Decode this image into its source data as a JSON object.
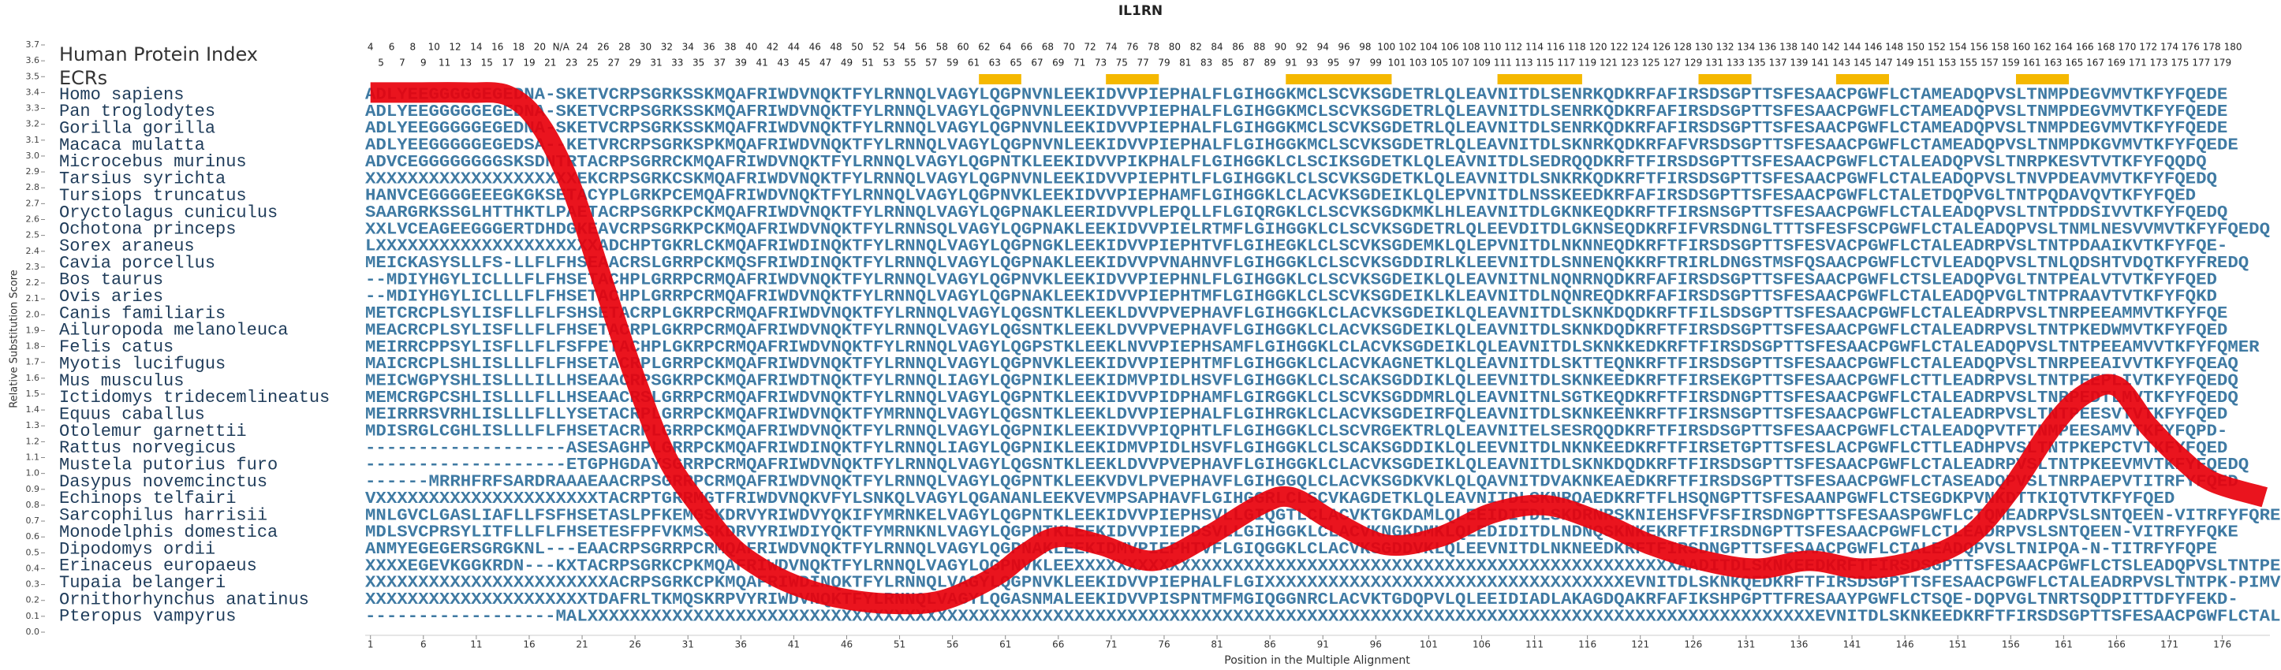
{
  "title": "IL1RN",
  "header": {
    "protein_index_label": "Human Protein Index",
    "ecr_label": "ECRs",
    "index_row_1": [
      4,
      6,
      8,
      10,
      12,
      14,
      16,
      18,
      20,
      "N/A",
      24,
      26,
      28,
      30,
      32,
      34,
      36,
      38,
      40,
      42,
      44,
      46,
      48,
      50,
      52,
      54,
      56,
      58,
      60,
      62,
      64,
      66,
      68,
      70,
      72,
      74,
      76,
      78,
      80,
      82,
      84,
      86,
      88,
      90,
      92,
      94,
      96,
      98,
      100,
      102,
      104,
      106,
      108,
      110,
      112,
      114,
      116,
      118,
      120,
      122,
      124,
      126,
      128,
      130,
      132,
      134,
      136,
      138,
      140,
      142,
      144,
      146,
      148,
      150,
      152,
      154,
      156,
      158,
      160,
      162,
      164,
      166,
      168,
      170,
      172,
      174,
      176,
      178,
      180
    ],
    "index_row_2": [
      5,
      7,
      9,
      11,
      13,
      15,
      17,
      19,
      21,
      23,
      25,
      27,
      29,
      31,
      33,
      35,
      37,
      39,
      41,
      43,
      45,
      47,
      49,
      51,
      53,
      55,
      57,
      59,
      61,
      63,
      65,
      67,
      69,
      71,
      73,
      75,
      77,
      79,
      81,
      83,
      85,
      87,
      89,
      91,
      93,
      95,
      97,
      99,
      101,
      103,
      105,
      107,
      109,
      111,
      113,
      115,
      117,
      119,
      121,
      123,
      125,
      127,
      129,
      131,
      133,
      135,
      137,
      139,
      141,
      143,
      145,
      147,
      149,
      151,
      153,
      155,
      157,
      159,
      161,
      163,
      165,
      167,
      169,
      171,
      173,
      175,
      177,
      179
    ]
  },
  "ecr_regions": [
    {
      "start": 59,
      "end": 62
    },
    {
      "start": 71,
      "end": 75
    },
    {
      "start": 88,
      "end": 97
    },
    {
      "start": 108,
      "end": 115
    },
    {
      "start": 127,
      "end": 131
    },
    {
      "start": 140,
      "end": 144
    },
    {
      "start": 157,
      "end": 161
    }
  ],
  "alignment": {
    "rows": [
      {
        "species": "Homo sapiens",
        "sequence": "ADLYEEGGGGGEGEDNA-SKETVCRPSGRKSSKMQAFRIWDVNQKTFYLRNNQLVAGYLQGPNVNLEEKIDVVPIEPHALFLGIHGGKMCLSCVKSGDETRLQLEAVNITDLSENRKQDKRFAFIRSDSGPTTSFESAACPGWFLCTAMEADQPVSLTNMPDEGVMVTKFYFQEDE"
      },
      {
        "species": "Pan troglodytes",
        "sequence": "ADLYEEGGGGGEGEDNA-SKETVCRPSGRKSSKMQAFRIWDVNQKTFYLRNNQLVAGYLQGPNVNLEEKIDVVPIEPHALFLGIHGGKMCLSCVKSGDETRLQLEAVNITDLSENRKQDKRFAFIRSDSGPTTSFESAACPGWFLCTAMEADQPVSLTNMPDEGVMVTKFYFQEDE"
      },
      {
        "species": "Gorilla gorilla",
        "sequence": "ADLYEEGGGGGEGEDNA-SKETVCRPSGRKSSKMQAFRIWDVNQKTFYLRNNQLVAGYLQGPNVNLEEKIDVVPIEPHALFLGIHGGKMCLSCVKSGDETRLQLEAVNITDLSENRKQDKRFAFIRSDSGPTTSFESAACPGWFLCTAMEADQPVSLTNMPDEGVMVTKFYFQEDE"
      },
      {
        "species": "Macaca mulatta",
        "sequence": "ADLYEEGGGGGEGEDSA--KETVRCRPSGRKSPKMQAFRIWDVNQKTFYLRNNQLVAGYLQGPNVNLEEKIDVVPIEPHALFLGIHGGKMCLSCVKSGDETRLQLEAVNITDLSKNRKQDKRFAFVRSDSGPTTSFESAACPGWFLCTAMEADQPVSLTNMPDKGVMVTKFYFQEDE"
      },
      {
        "species": "Microcebus murinus",
        "sequence": "ADVCEGGGGGGGGSKSDNTRTACRPSGRRCKMQAFRIWDVNQKTFYLRNNQLVAGYLQGPNTKLEEKIDVVPIKPHALFLGIHGGKLCLSCIKSGDETKLQLEAVNITDLSEDRQQDKRFTFIRSDSGPTTSFESAACPGWFLCTALEADQPVSLTNRPKESVTVTKFYFQQDQ"
      },
      {
        "species": "Tarsius syrichta",
        "sequence": "XXXXXXXXXXXXXXXXXXXXEKCRPSGRKCSKMQAFRIWDVNQKTFYLRNNQLVAGYLQGPNVNLEEKIDVVPIEPHTLFLGIHGGKLCLSCVKSGDETKLQLEAVNITDLSNKRKQDKRFTFIRSDSGPTTSFESAACPGWFLCTALEADQPVSLTNVPDEAVMVTKFYFQEDQ"
      },
      {
        "species": "Tursiops truncatus",
        "sequence": "HANVCEGGGGEEEGKGKSETACYPLGRKPCEMQAFRIWDVNQKTFYLRNNQLVAGYLQGPNVKLEEKIDVVPIEPHAMFLGIHGGKLCLACVKSGDEIKLQLEPVNITDLNSSKEEDKRFAFIRSDSGPTTSFESAACPGWFLCTALETDQPVGLTNTPQDAVQVTKFYFQED"
      },
      {
        "species": "Oryctolagus cuniculus",
        "sequence": "SAARGRKSSGLHTTHKTLPAETACRPSGRKPCKMQAFRIWDVNQKTFYLRNNQLVAGYLQGPNAKLEERIDVVPLEPQLLFLGIQRGKLCLSCVKSGDKMKLHLEAVNITDLGKNKEQDKRFTFIRSNSGPTTSFESAACPGWFLCTALEADQPVSLTNTPDDSIVVTKFYFQEDQ"
      },
      {
        "species": "Ochotona princeps",
        "sequence": "XXLVCEAGEEGGGERTDHDGKEAVCRPSGRKPCKMQAFRIWDVNQKTFYLRNNSQLVAGYLQGPNAKLEEKIDVVPIELRTMFLGIHGGKLCLSCVKSGDETRLQLEEVDITDLGKNSEQDKRFIFVRSDNGLTTTSFESFSCPGWFLCTALEADQPVSLTNMLNESVVMVTKFYFQEDQ"
      },
      {
        "species": "Sorex araneus",
        "sequence": "LXXXXXXXXXXXXXXXXXXXXXADCHPTGKRLCKMQAFRIWDINQKTFYLRNNQLVAGYLQGPNGKLEEKIDVVPIEPHTVFLGIHEGKLCLSCVKSGDEMKLQLEPVNITDLNKNNEQDKRFTFIRSDSGPTTSFESVACPGWFLCTALEADRPVSLTNTPDAAIKVTKFYFQE-"
      },
      {
        "species": "Cavia porcellus",
        "sequence": "MEICKASYSLLFS-LLFLFHSEAACRSLGRRPCKMQSFRIWDINQKTFYLRNNQLVAGYLQGPNAKLEEKIDVVPVNAHNVFLGIHGGKLCLSCVKSGDDIRLKLEEVNITDLSNNENQKKRFTRIRLDNGSTMSFQSAACPGWFLCTVLEADQPVSLTNLQDSHTVDQTKFYFREDQ"
      },
      {
        "species": "Bos taurus",
        "sequence": "--MDIYHGYLICLLLFLFHSETACHPLGRRPCRMQAFRIWDVNQKTFYLRNNQLVAGYLQGPNVKLEEKIDVVPIEPHNLFLGIHGGKLCLSCVKSGDEIKLQLEAVNITNLNQNRNQDKRFAFIRSDSGPTTSFESAACPGWFLCTSLEADQPVGLTNTPEALVTVTKFYFQED"
      },
      {
        "species": "Ovis aries",
        "sequence": "--MDIYHGYLICLLLFLFHSETACHPLGRRPCRMQAFRIWDVNQKTFYLRNNQLVAGYLQGPNAKLEEKIDVVPIEPHTMFLGIHGGKLCLSCVKSGDEIKLKLEAVNITDLNQNREQDKRFAFIRSDSGPTTSFESAACPGWFLCTALEADQPVGLTNTPRAAVTVTKFYFQKD"
      },
      {
        "species": "Canis familiaris",
        "sequence": "METCRCPLSYLISFLLFLFSHSETACRPLGKRPCRMQAFRIWDVNQKTFYLRNNQLVAGYLQGSNTKLEEKLDVVPVEPHAVFLGIHGGKLCLACVKSGDEIKLQLEAVNITDLSKNKDQDKRFTFILSDSGPTTSFESAACPGWFLCTALEADRPVSLTNRPEEAMMVTKFYFQE"
      },
      {
        "species": "Ailuropoda melanoleuca",
        "sequence": "MEACRCPLSYLISFLLFLFHSETACRPLGKRPCRMQAFRIWDVNQKTFYLRNNQLVAGYLQGSNTKLEEKLDVVPVEPHAVFLGIHGGKLCLACVKSGDEIKLQLEAVNITDLSKNKDQDKRFTFIRSDSGPTTSFESAACPGWFLCTALEADRPVSLTNTPKEDWMVTKFYFQED"
      },
      {
        "species": "Felis catus",
        "sequence": "MEIRRCPPSYLISFLLFLFSFPETACHPLGKRPCRMQAFRIWDVNQKTFYLRNNQLVAGYLQGPSTKLEEKLNVVPIEPHSAMFLGIHGGKLCLACVKSGDEIKLQLEAVNITDLSKNKKEDKRFTFIRSDSGPTTSFESAACPGWFLCTALEADQPVSLTNTPEEAMVVTKFYFQMER"
      },
      {
        "species": "Myotis lucifugus",
        "sequence": "MAICRCPLSHLISLLLFLFHSETACRPLGRRPCKMQAFRIWDVNQKTFYLRNNQLVAGYLQGPNVKLEEKIDVVPIEPHTMFLGIHGGKLCLACVKAGNETKLQLEAVNITDLSKTTEQNKRFTFIRSDSGPTTSFESAACPGWFLCTALEADQPVSLTNRPEEAIVVTKFYFQEAQ"
      },
      {
        "species": "Mus musculus",
        "sequence": "MEICWGPYSHLISLLLILLHSEAACRPSGKRPCKMQAFRIWDTNQKTFYLRNNQLIAGYLQGPNIKLEEKIDMVPIDLHSVFLGIHGGKLCLSCAKSGDDIKLQLEEVNITDLSKNKEEDKRFTFIRSEKGPTTSFESAACPGWFLCTTLEADRPVSLTNTPEEPLIVTKFYFQEDQ"
      },
      {
        "species": "Ictidomys tridecemlineatus",
        "sequence": "MEMCRGPCSHLISLLLFLLHSEAACRSLGRRPCRMQAFRIWDVNQKTFYLRNNQLVAGYLQGPNTKLEEKIDVVPIDPHAMFLGIRGGKLCLSCVKSGDDMRLQLEAVNITNLSGTKEQDKRFTFIRSDNGPTTSFESAACPGWFLCTALEADRPVSLTNRPEDTLMVTKFYFQEDQ"
      },
      {
        "species": "Equus caballus",
        "sequence": "MEIRRRSVRHLISLLLFLLYSETACRPLGRRPCKMQAFRIWDVNQKTFYMRNNQLVAGYLQGSNTKLEEKLDVVPIEPHALFLGIHRGKLCLACVKSGDEIRFQLEAVNITDLSKNKEENKRFTFIRSNSGPTTSFESAACPGWFLCTALEADRPVSLTNTPEESVTVTKFYFQED"
      },
      {
        "species": "Otolemur garnettii",
        "sequence": "MDISRGLCGHLISLLLFLFHSETACRPLGRRPCKMQAFRIWDVNQKTFYLRNNQLVAGYLQGPNIKLEEKIDVVPIQPHTLFLGIHGGKLCLSCVRGEKTRLQLEAVNITELSESRQQDKRFTFIRSDSGPTTSFESAACPGWFLCTALEADQPVTFTNMPEESAMVTKFYFQPD-"
      },
      {
        "species": "Rattus norvegicus",
        "sequence": "-------------------ASESAGHPLGRRPCKMQAFRIWDINQKTFYLRNNQLIAGYLQGPNIKLEEKIDMVPIDLHSVFLGIHGGKLCLSCAKSGDDIKLQLEEVNITDLNKNKEEDKRFTFIRSETGPTTSFESLACPGWFLCTTLEADHPVSLTNTPKEPCTVTKFYFQED"
      },
      {
        "species": "Mustela putorius furo",
        "sequence": "-------------------ETGPHGDAYSGRRPCRMQAFRIWDVNQKTFYLRNNQLVAGYLQGSNTKLEEKLDVVPVEPHAVFLGIHGGKLCLACVKSGDEIKLQLEAVNITDLSKNKDQDKRFTFIRSDSGPTTSFESAACPGWFLCTALEADRPVSLTNTPKEEVMVTKFYFQEDQ"
      },
      {
        "species": "Dasypus novemcinctus",
        "sequence": "------MRRHFRFSARDRAAAEAACRPSGRRPCRMQAFRIWDVNQKTFYLRNNQLVAGYLQGPNTKLEEKVDVLPVEPHAVFLGIHGGQLCLACVKSGDKVKLQLQAVNITDVAKNKEAEDKRFTFIRSDSGPTTSFESAACPGWFLCTASEADQPVSLTNRPAEPVTITRFYFQED"
      },
      {
        "species": "Echinops telfairi",
        "sequence": "VXXXXXXXXXXXXXXXXXXXXXTACRPTGRRMGTFRIWDVNQKVFYLSNKQLVAGYLQGANANLEEKVEVMPSAPHAVFLGIHGGRLCLSCVKAGDETKLQLEAVNITDLSKNRQAEDKRFTFLHSQNGPTTSFESAANPGWFLCTSEGDKPVNKDTTKIQTVTKFYFQED"
      },
      {
        "species": "Sarcophilus harrisii",
        "sequence": "MNLGVCLGASLIAFLLFSFHSETASLPFKEMGSKDRVYRIWDVYQKIFYMRNKELVAGYLQGPNTKLEEKIDVVPIEPHSVLLGIQGTLCLACVKTGKDAMLQLEEIDITDLSKDRNRSKNIEHSFVFSFIRSDNGPTTSFESAASPGWFLCTQMEADRPVSLSNTQEEN-VITRFYFQRE"
      },
      {
        "species": "Monodelphis domestica",
        "sequence": "MDLSVCPRSYLITFLLFLFHSETESFPFVKMSSKDRVYRIWDIYQKTFYMRNKNLVAGYLQGPNTKLEEKIDVVPIEPDSVLLGIHGGKLCLACVKNGKDMKLQLEDIDITDLNDNQSKNKEKRFTFIRSDNGPTTSFESAACPGWFLCTLEADRPVSLSNTQEEN-VITRFYFQKE"
      },
      {
        "species": "Dipodomys ordii",
        "sequence": "ANMYEGEGERSGRGKNL---EAACRPSGRRPCRMQAFRIWDVNQKTFYLRNNQLVAGYLQGPNAKLEEKIDMVPIEPHTVFLGIQGGKLCLACVKSGDDVKLQLEEVNITDLNKNEEDKRFTFIRSDNGPTTSFESAACPGWFLCTALEADQPVSLTNIPQA-N-TITRFYFQPE"
      },
      {
        "species": "Erinaceus europaeus",
        "sequence": "XXXXEGEVKGGKRDN---KXTACRPSGRKCPKMQAFRIWDVNQKTFYLRNNQLVAGYLQGPNVKLEEXXXXXXXXXXXXXXXXXXXXXXXXXXXXXXXXXXXXXXXXXXXXXXXXXXXXXXXXXAADITDLSKNKEEDKRFTFIRSDSGPTTSFESAACPGWFLCTSLEADQPVSLTNTPEEPIMVTKFYFQQDQ"
      },
      {
        "species": "Tupaia belangeri",
        "sequence": "XXXXXXXXXXXXXXXXXXXXXXXACRPSGRKCPKMQAFRIWDINQKTFYLRNNQLVAGYLQGPNVKLEEKIDVVPIEPHALFLGIXXXXXXXXXXXXXXXXXXXXXXXXXXXXXXXXXXEVNITDLSKNKQEDKRFTFIRSDSGPTTSFESAACPGWFLCTALEADRPVSLTNTPK-PIMVT--FYFQEDQ"
      },
      {
        "species": "Ornithorhynchus anatinus",
        "sequence": "XXXXXXXXXXXXXXXXXXXXXTDAFRLTKMQSKRPVYRIWDVNQKTFYLRNNQLVAGYLQGASNMALEEKIDVVPISPNTMFMGIQGGNRCLACVKTGDQPVLQLEEIDIADLAKAGDQAKRFAFIKSHPGPTTFRESAAYPGWFLCTSQE-DQPVGLTNRTSQDPITTDFYFEKD-"
      },
      {
        "species": "Pteropus vampyrus",
        "sequence": "------------------MALXXXXXXXXXXXXXXXXXXXXXXXXXXXXXXXXXXXXXXXXXXXXXXXXXXXXXXXXXXXXXXXXXXXXXXXXXXXXXXXXXXXXXXXXXXXXXXXXXXXXXXXXXXXXXXXXXXXXEVNITDLSKNKEEDKRFTFIRSDSGPTTSFESAACPGWFLCTALEADRPVSLTNTPEEPLMVTKFYFQQDR"
      }
    ]
  },
  "chart_data": {
    "type": "line",
    "x_label": "Position in the Multiple Alignment",
    "y_label": "Relative Substitution Score",
    "color": "#e8000b",
    "x": [
      1,
      5,
      10,
      14,
      17,
      20,
      23,
      26,
      29,
      32,
      35,
      38,
      41,
      45,
      50,
      55,
      60,
      63,
      66,
      70,
      75,
      80,
      85,
      88,
      92,
      97,
      102,
      107,
      112,
      117,
      122,
      127,
      132,
      137,
      142,
      147,
      152,
      156,
      160,
      163,
      166,
      169,
      172,
      175,
      180
    ],
    "values": [
      3.4,
      3.4,
      3.4,
      3.38,
      3.2,
      2.8,
      2.2,
      1.6,
      1.1,
      0.8,
      0.55,
      0.4,
      0.3,
      0.22,
      0.18,
      0.2,
      0.35,
      0.5,
      0.6,
      0.55,
      0.45,
      0.6,
      0.8,
      0.85,
      0.7,
      0.55,
      0.6,
      0.75,
      0.8,
      0.7,
      0.55,
      0.45,
      0.4,
      0.45,
      0.4,
      0.45,
      0.6,
      0.9,
      1.3,
      1.5,
      1.55,
      1.3,
      1.1,
      0.95,
      0.85
    ],
    "xlim": [
      0.5,
      180.5
    ],
    "xticks": [
      1,
      6,
      11,
      16,
      21,
      26,
      31,
      36,
      41,
      46,
      51,
      56,
      61,
      66,
      71,
      76,
      81,
      86,
      91,
      96,
      101,
      106,
      111,
      116,
      121,
      126,
      131,
      136,
      141,
      146,
      151,
      156,
      161,
      166,
      171,
      176
    ],
    "ylim": [
      0,
      3.7
    ],
    "yticks": [
      {
        "value": 0,
        "label": "0.0"
      },
      0.1,
      0.2,
      0.3,
      0.4,
      0.5,
      0.6,
      0.7,
      0.8,
      0.9,
      {
        "value": 1,
        "label": "1.0"
      },
      1.1,
      1.2,
      1.3,
      1.4,
      1.5,
      1.6,
      1.7,
      1.8,
      1.9,
      {
        "value": 2,
        "label": "2.0"
      },
      2.1,
      2.2,
      2.3,
      2.4,
      2.5,
      2.6,
      2.7,
      2.8,
      2.9,
      {
        "value": 3,
        "label": "3.0"
      },
      3.1,
      3.2,
      3.3,
      3.4,
      3.5,
      3.6,
      3.7
    ]
  }
}
